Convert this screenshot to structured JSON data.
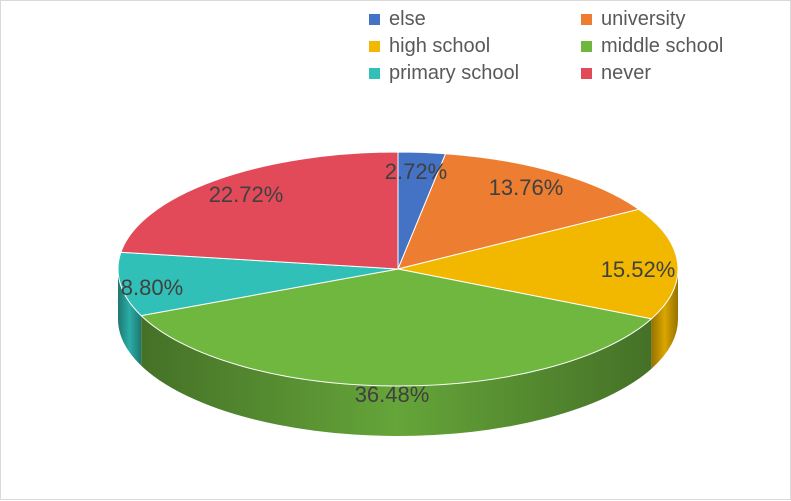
{
  "chart_data": {
    "type": "pie",
    "title": "",
    "legend_position": "top-right",
    "categories": [
      "else",
      "university",
      "high school",
      "middle school",
      "primary school",
      "never"
    ],
    "values": [
      2.72,
      13.76,
      15.52,
      36.48,
      8.8,
      22.72
    ],
    "labels": [
      "2.72%",
      "13.76%",
      "15.52%",
      "36.48%",
      "8.80%",
      "22.72%"
    ],
    "colors": [
      "#4472C4",
      "#ED7D31",
      "#F2B800",
      "#70B73F",
      "#30C0B8",
      "#E24A5A"
    ],
    "start_angle_deg": 0,
    "direction": "clockwise"
  }
}
